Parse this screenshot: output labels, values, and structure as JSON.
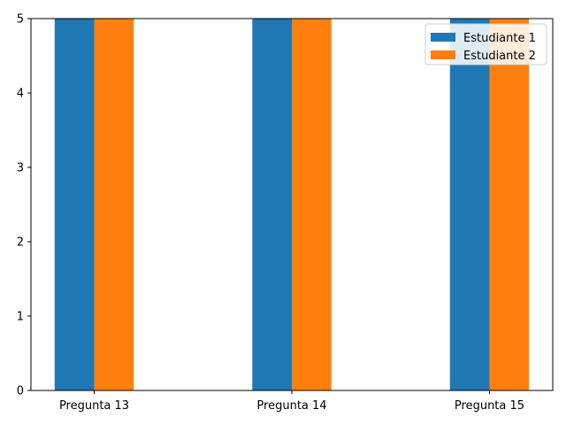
{
  "chart_data": {
    "type": "bar",
    "title": "",
    "xlabel": "",
    "ylabel": "",
    "categories": [
      "Pregunta 13",
      "Pregunta 14",
      "Pregunta 15"
    ],
    "series": [
      {
        "name": "Estudiante 1",
        "color": "#1f77b4",
        "values": [
          5,
          5,
          5
        ]
      },
      {
        "name": "Estudiante 2",
        "color": "#ff7f0e",
        "values": [
          5,
          5,
          5
        ]
      }
    ],
    "ylim": [
      0,
      5
    ],
    "yticks": [
      "0",
      "1",
      "2",
      "3",
      "4",
      "5"
    ],
    "grid": false,
    "legend": "top-right"
  }
}
